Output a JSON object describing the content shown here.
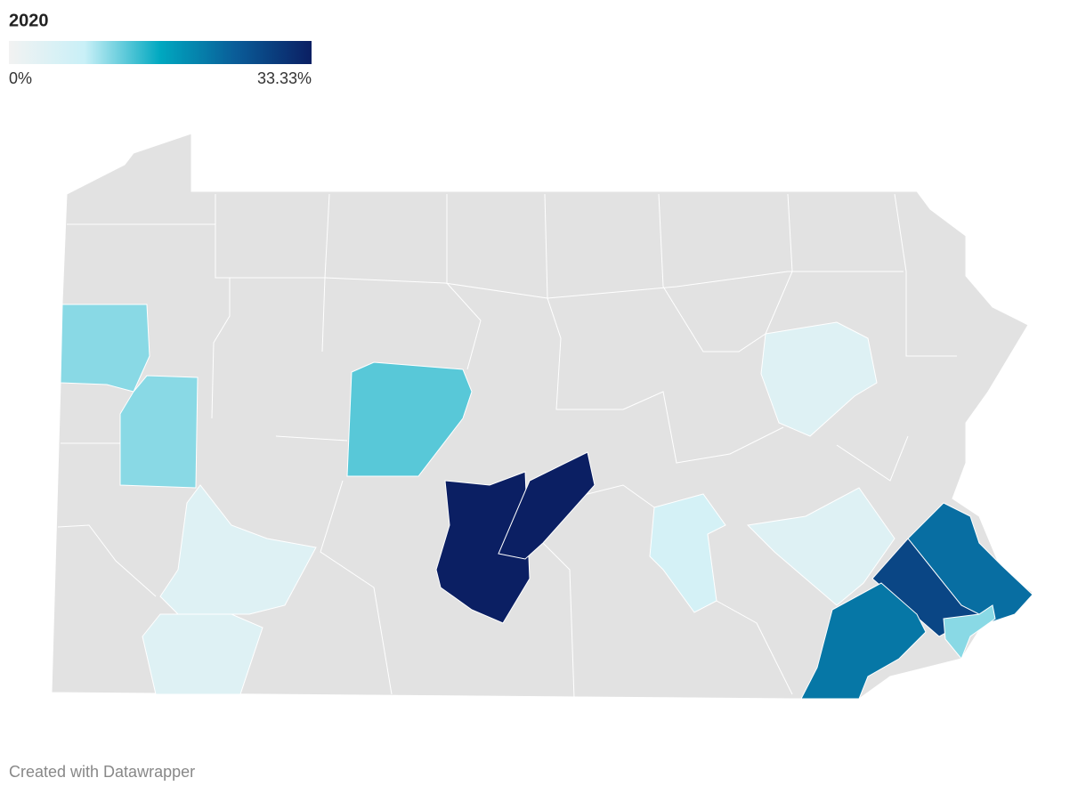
{
  "legend": {
    "title": "2020",
    "min": {
      "value": 0,
      "label": "0%"
    },
    "max": {
      "value": 33.33,
      "label": "33.33%"
    },
    "colors": [
      "#f2f2f2",
      "#c9f0f7",
      "#00a8c0",
      "#0a5c98",
      "#0b1f63"
    ]
  },
  "map": {
    "base_color": "#e2e2e2",
    "values": [
      11,
      11,
      13,
      33.33,
      33.33,
      4,
      4,
      6,
      4,
      4,
      23,
      28,
      22,
      11
    ]
  },
  "footer": "Created with Datawrapper"
}
